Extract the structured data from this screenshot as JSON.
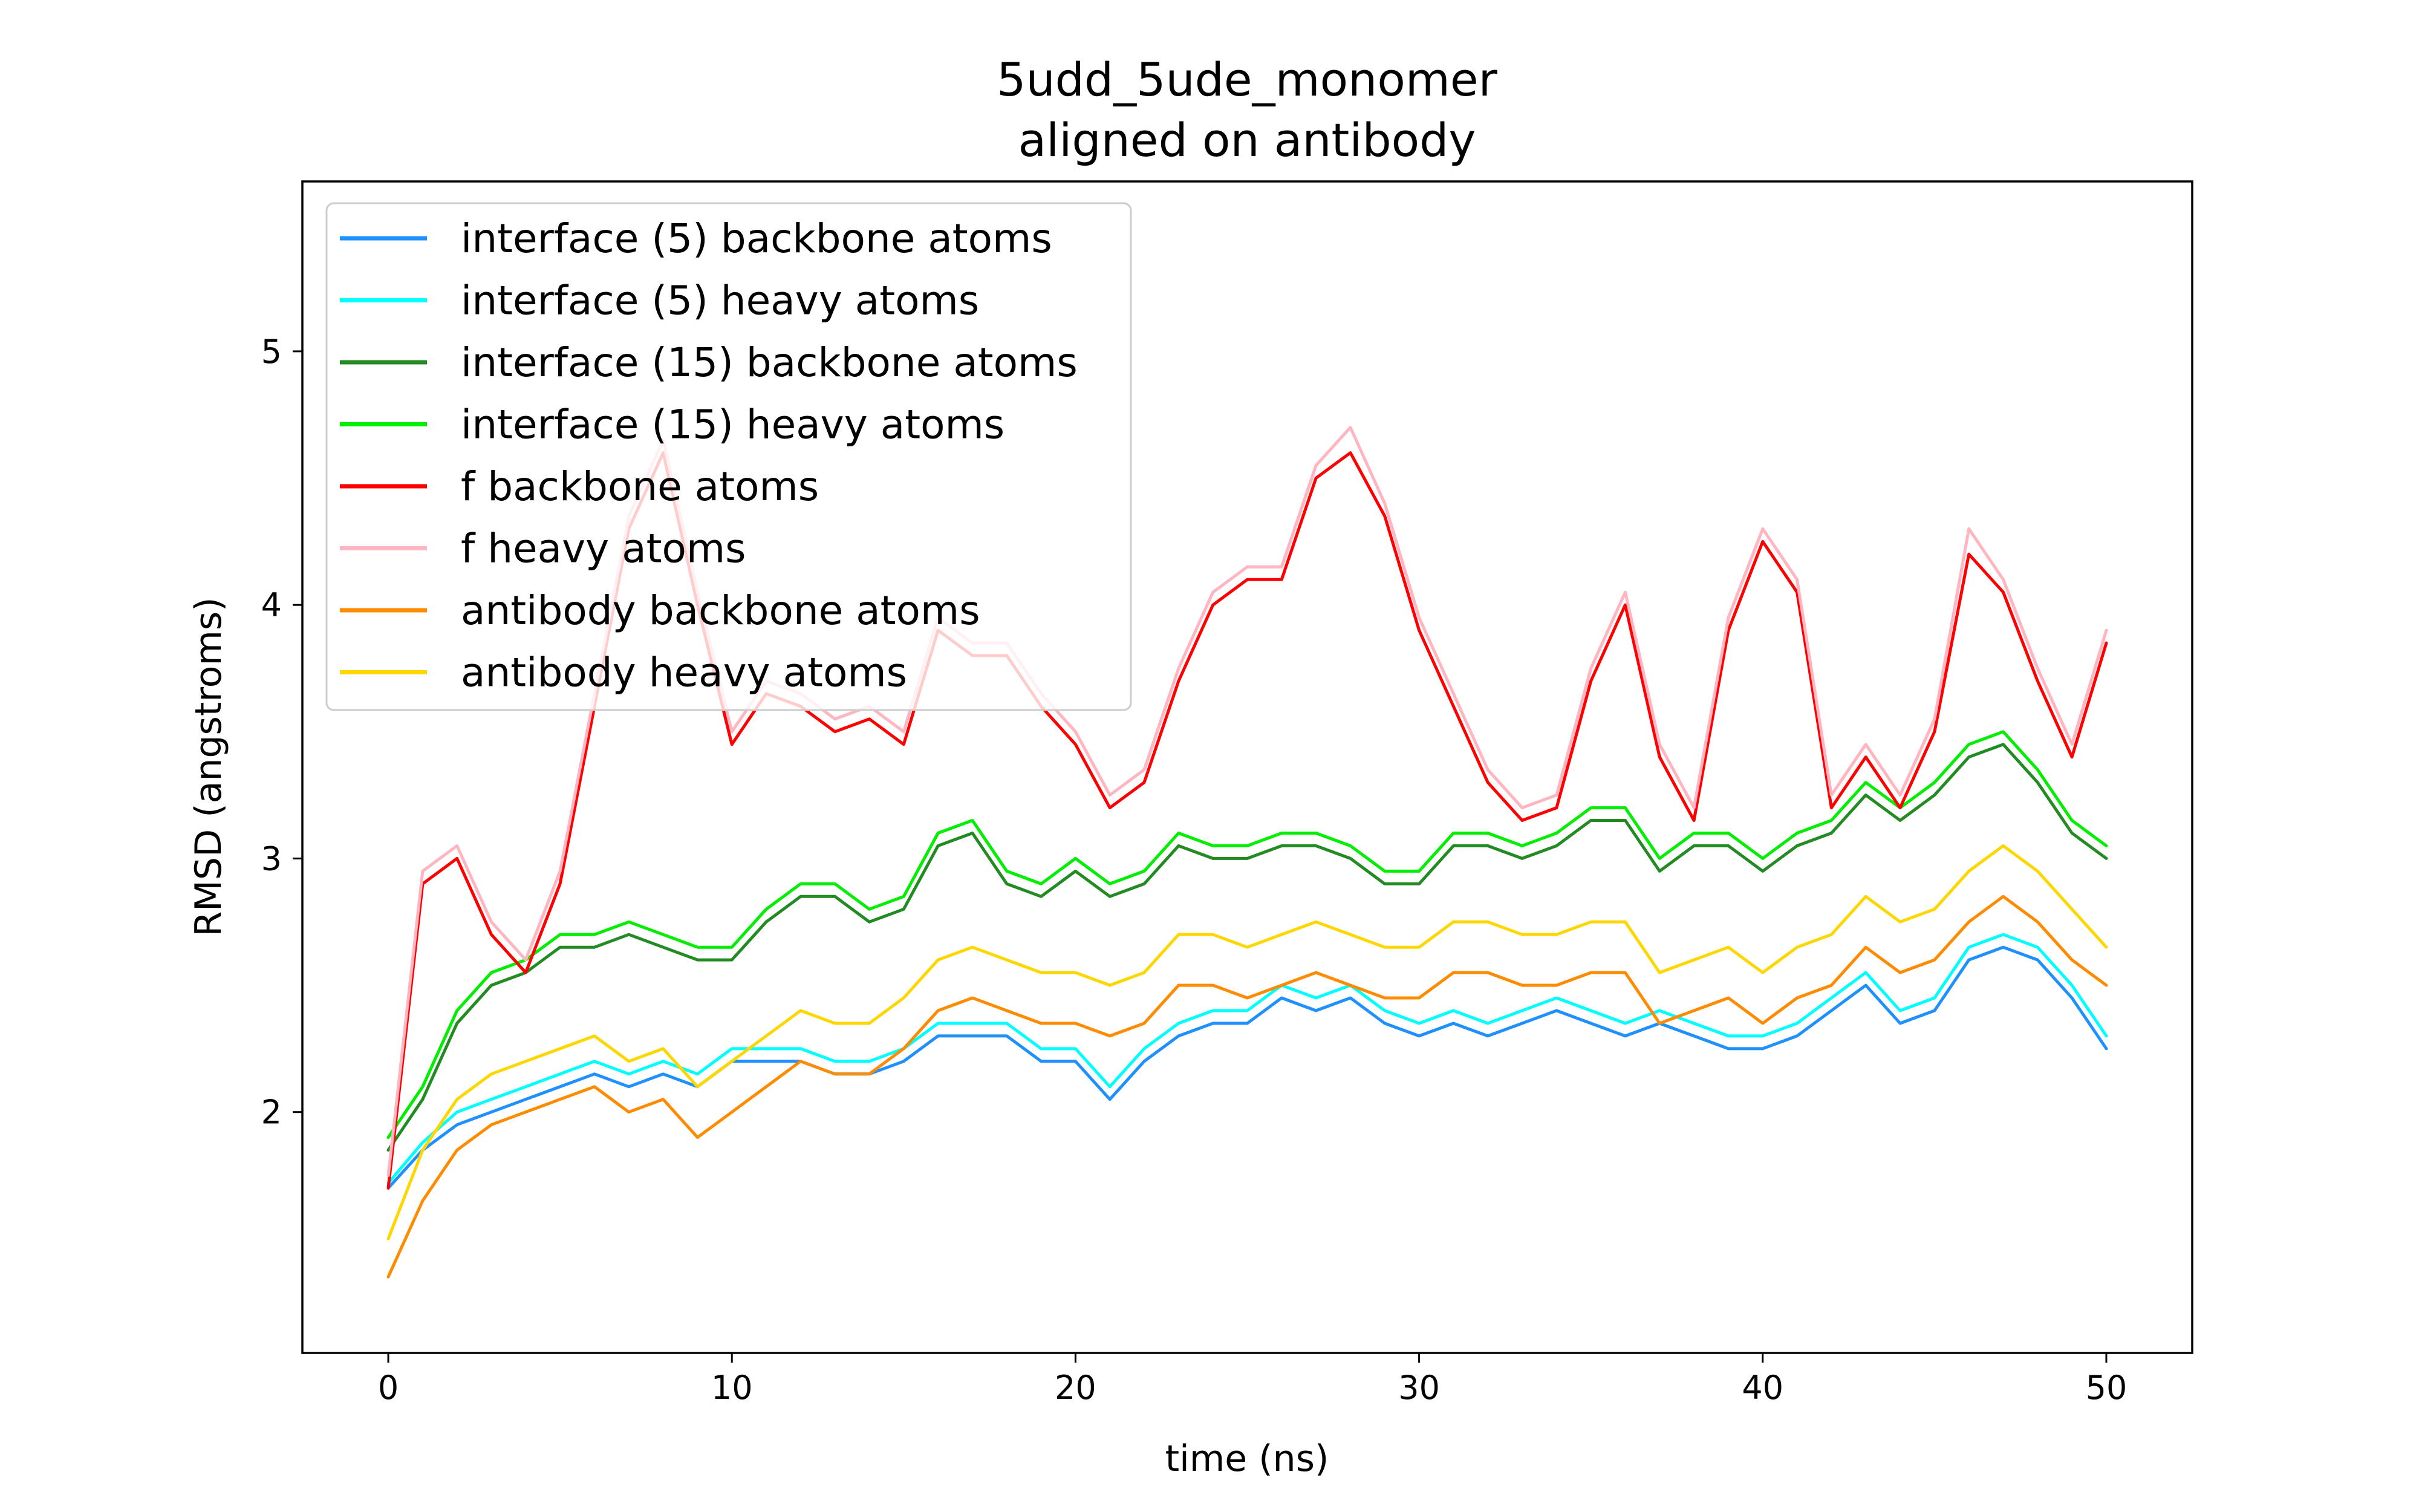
{
  "chart_data": {
    "type": "line",
    "title": "5udd_5ude_monomer",
    "subtitle": "aligned on antibody",
    "xlabel": "time (ns)",
    "ylabel": "RMSD (angstroms)",
    "xlim": [
      -2.5,
      52.5
    ],
    "ylim": [
      1.05,
      5.67
    ],
    "xticks": [
      0,
      10,
      20,
      30,
      40,
      50
    ],
    "yticks": [
      2,
      3,
      4,
      5
    ],
    "grid": false,
    "legend_position": "top-left",
    "series": [
      {
        "name": "interface (5) backbone atoms",
        "color": "#1e90ff",
        "x": [
          0,
          1,
          2,
          3,
          4,
          5,
          6,
          7,
          8,
          9,
          10,
          11,
          12,
          13,
          14,
          15,
          16,
          17,
          18,
          19,
          20,
          21,
          22,
          23,
          24,
          25,
          26,
          27,
          28,
          29,
          30,
          31,
          32,
          33,
          34,
          35,
          36,
          37,
          38,
          39,
          40,
          41,
          42,
          43,
          44,
          45,
          46,
          47,
          48,
          49,
          50
        ],
        "values": [
          1.7,
          1.85,
          1.95,
          2.0,
          2.05,
          2.1,
          2.15,
          2.1,
          2.15,
          2.1,
          2.2,
          2.2,
          2.2,
          2.15,
          2.15,
          2.2,
          2.3,
          2.3,
          2.3,
          2.2,
          2.2,
          2.05,
          2.2,
          2.3,
          2.35,
          2.35,
          2.45,
          2.4,
          2.45,
          2.35,
          2.3,
          2.35,
          2.3,
          2.35,
          2.4,
          2.35,
          2.3,
          2.35,
          2.3,
          2.25,
          2.25,
          2.3,
          2.4,
          2.5,
          2.35,
          2.4,
          2.6,
          2.65,
          2.6,
          2.45,
          2.25
        ]
      },
      {
        "name": "interface (5) heavy atoms",
        "color": "#00ffff",
        "x": [
          0,
          1,
          2,
          3,
          4,
          5,
          6,
          7,
          8,
          9,
          10,
          11,
          12,
          13,
          14,
          15,
          16,
          17,
          18,
          19,
          20,
          21,
          22,
          23,
          24,
          25,
          26,
          27,
          28,
          29,
          30,
          31,
          32,
          33,
          34,
          35,
          36,
          37,
          38,
          39,
          40,
          41,
          42,
          43,
          44,
          45,
          46,
          47,
          48,
          49,
          50
        ],
        "values": [
          1.72,
          1.88,
          2.0,
          2.05,
          2.1,
          2.15,
          2.2,
          2.15,
          2.2,
          2.15,
          2.25,
          2.25,
          2.25,
          2.2,
          2.2,
          2.25,
          2.35,
          2.35,
          2.35,
          2.25,
          2.25,
          2.1,
          2.25,
          2.35,
          2.4,
          2.4,
          2.5,
          2.45,
          2.5,
          2.4,
          2.35,
          2.4,
          2.35,
          2.4,
          2.45,
          2.4,
          2.35,
          2.4,
          2.35,
          2.3,
          2.3,
          2.35,
          2.45,
          2.55,
          2.4,
          2.45,
          2.65,
          2.7,
          2.65,
          2.5,
          2.3
        ]
      },
      {
        "name": "interface (15) backbone atoms",
        "color": "#228b22",
        "x": [
          0,
          1,
          2,
          3,
          4,
          5,
          6,
          7,
          8,
          9,
          10,
          11,
          12,
          13,
          14,
          15,
          16,
          17,
          18,
          19,
          20,
          21,
          22,
          23,
          24,
          25,
          26,
          27,
          28,
          29,
          30,
          31,
          32,
          33,
          34,
          35,
          36,
          37,
          38,
          39,
          40,
          41,
          42,
          43,
          44,
          45,
          46,
          47,
          48,
          49,
          50
        ],
        "values": [
          1.85,
          2.05,
          2.35,
          2.5,
          2.55,
          2.65,
          2.65,
          2.7,
          2.65,
          2.6,
          2.6,
          2.75,
          2.85,
          2.85,
          2.75,
          2.8,
          3.05,
          3.1,
          2.9,
          2.85,
          2.95,
          2.85,
          2.9,
          3.05,
          3.0,
          3.0,
          3.05,
          3.05,
          3.0,
          2.9,
          2.9,
          3.05,
          3.05,
          3.0,
          3.05,
          3.15,
          3.15,
          2.95,
          3.05,
          3.05,
          2.95,
          3.05,
          3.1,
          3.25,
          3.15,
          3.25,
          3.4,
          3.45,
          3.3,
          3.1,
          3.0
        ]
      },
      {
        "name": "interface (15) heavy atoms",
        "color": "#00ee00",
        "x": [
          0,
          1,
          2,
          3,
          4,
          5,
          6,
          7,
          8,
          9,
          10,
          11,
          12,
          13,
          14,
          15,
          16,
          17,
          18,
          19,
          20,
          21,
          22,
          23,
          24,
          25,
          26,
          27,
          28,
          29,
          30,
          31,
          32,
          33,
          34,
          35,
          36,
          37,
          38,
          39,
          40,
          41,
          42,
          43,
          44,
          45,
          46,
          47,
          48,
          49,
          50
        ],
        "values": [
          1.9,
          2.1,
          2.4,
          2.55,
          2.6,
          2.7,
          2.7,
          2.75,
          2.7,
          2.65,
          2.65,
          2.8,
          2.9,
          2.9,
          2.8,
          2.85,
          3.1,
          3.15,
          2.95,
          2.9,
          3.0,
          2.9,
          2.95,
          3.1,
          3.05,
          3.05,
          3.1,
          3.1,
          3.05,
          2.95,
          2.95,
          3.1,
          3.1,
          3.05,
          3.1,
          3.2,
          3.2,
          3.0,
          3.1,
          3.1,
          3.0,
          3.1,
          3.15,
          3.3,
          3.2,
          3.3,
          3.45,
          3.5,
          3.35,
          3.15,
          3.05
        ]
      },
      {
        "name": "f backbone atoms",
        "color": "#ff0000",
        "x": [
          0,
          1,
          2,
          3,
          4,
          5,
          6,
          7,
          8,
          9,
          10,
          11,
          12,
          13,
          14,
          15,
          16,
          17,
          18,
          19,
          20,
          21,
          22,
          23,
          24,
          25,
          26,
          27,
          28,
          29,
          30,
          31,
          32,
          33,
          34,
          35,
          36,
          37,
          38,
          39,
          40,
          41,
          42,
          43,
          44,
          45,
          46,
          47,
          48,
          49,
          50
        ],
        "values": [
          1.7,
          2.9,
          3.0,
          2.7,
          2.55,
          2.9,
          3.6,
          4.3,
          4.6,
          4.0,
          3.45,
          3.65,
          3.6,
          3.5,
          3.55,
          3.45,
          3.9,
          3.8,
          3.8,
          3.6,
          3.45,
          3.2,
          3.3,
          3.7,
          4.0,
          4.1,
          4.1,
          4.5,
          4.6,
          4.35,
          3.9,
          3.6,
          3.3,
          3.15,
          3.2,
          3.7,
          4.0,
          3.4,
          3.15,
          3.9,
          4.25,
          4.05,
          3.2,
          3.4,
          3.2,
          3.5,
          4.2,
          4.05,
          3.7,
          3.4,
          3.85
        ]
      },
      {
        "name": "f heavy atoms",
        "color": "#ffb6c1",
        "x": [
          0,
          1,
          2,
          3,
          4,
          5,
          6,
          7,
          8,
          9,
          10,
          11,
          12,
          13,
          14,
          15,
          16,
          17,
          18,
          19,
          20,
          21,
          22,
          23,
          24,
          25,
          26,
          27,
          28,
          29,
          30,
          31,
          32,
          33,
          34,
          35,
          36,
          37,
          38,
          39,
          40,
          41,
          42,
          43,
          44,
          45,
          46,
          47,
          48,
          49,
          50
        ],
        "values": [
          1.75,
          2.95,
          3.05,
          2.75,
          2.6,
          2.95,
          3.65,
          4.35,
          4.65,
          4.05,
          3.5,
          3.7,
          3.65,
          3.55,
          3.6,
          3.5,
          3.95,
          3.85,
          3.85,
          3.65,
          3.5,
          3.25,
          3.35,
          3.75,
          4.05,
          4.15,
          4.15,
          4.55,
          4.7,
          4.4,
          3.95,
          3.65,
          3.35,
          3.2,
          3.25,
          3.75,
          4.05,
          3.45,
          3.2,
          3.95,
          4.3,
          4.1,
          3.25,
          3.45,
          3.25,
          3.55,
          4.3,
          4.1,
          3.75,
          3.45,
          3.9
        ]
      },
      {
        "name": "antibody backbone atoms",
        "color": "#ff8c00",
        "x": [
          0,
          1,
          2,
          3,
          4,
          5,
          6,
          7,
          8,
          9,
          10,
          11,
          12,
          13,
          14,
          15,
          16,
          17,
          18,
          19,
          20,
          21,
          22,
          23,
          24,
          25,
          26,
          27,
          28,
          29,
          30,
          31,
          32,
          33,
          34,
          35,
          36,
          37,
          38,
          39,
          40,
          41,
          42,
          43,
          44,
          45,
          46,
          47,
          48,
          49,
          50
        ],
        "values": [
          1.35,
          1.65,
          1.85,
          1.95,
          2.0,
          2.05,
          2.1,
          2.0,
          2.05,
          1.9,
          2.0,
          2.1,
          2.2,
          2.15,
          2.15,
          2.25,
          2.4,
          2.45,
          2.4,
          2.35,
          2.35,
          2.3,
          2.35,
          2.5,
          2.5,
          2.45,
          2.5,
          2.55,
          2.5,
          2.45,
          2.45,
          2.55,
          2.55,
          2.5,
          2.5,
          2.55,
          2.55,
          2.35,
          2.4,
          2.45,
          2.35,
          2.45,
          2.5,
          2.65,
          2.55,
          2.6,
          2.75,
          2.85,
          2.75,
          2.6,
          2.5
        ]
      },
      {
        "name": "antibody heavy atoms",
        "color": "#ffd700",
        "x": [
          0,
          1,
          2,
          3,
          4,
          5,
          6,
          7,
          8,
          9,
          10,
          11,
          12,
          13,
          14,
          15,
          16,
          17,
          18,
          19,
          20,
          21,
          22,
          23,
          24,
          25,
          26,
          27,
          28,
          29,
          30,
          31,
          32,
          33,
          34,
          35,
          36,
          37,
          38,
          39,
          40,
          41,
          42,
          43,
          44,
          45,
          46,
          47,
          48,
          49,
          50
        ],
        "values": [
          1.5,
          1.85,
          2.05,
          2.15,
          2.2,
          2.25,
          2.3,
          2.2,
          2.25,
          2.1,
          2.2,
          2.3,
          2.4,
          2.35,
          2.35,
          2.45,
          2.6,
          2.65,
          2.6,
          2.55,
          2.55,
          2.5,
          2.55,
          2.7,
          2.7,
          2.65,
          2.7,
          2.75,
          2.7,
          2.65,
          2.65,
          2.75,
          2.75,
          2.7,
          2.7,
          2.75,
          2.75,
          2.55,
          2.6,
          2.65,
          2.55,
          2.65,
          2.7,
          2.85,
          2.75,
          2.8,
          2.95,
          3.05,
          2.95,
          2.8,
          2.65
        ]
      }
    ]
  }
}
